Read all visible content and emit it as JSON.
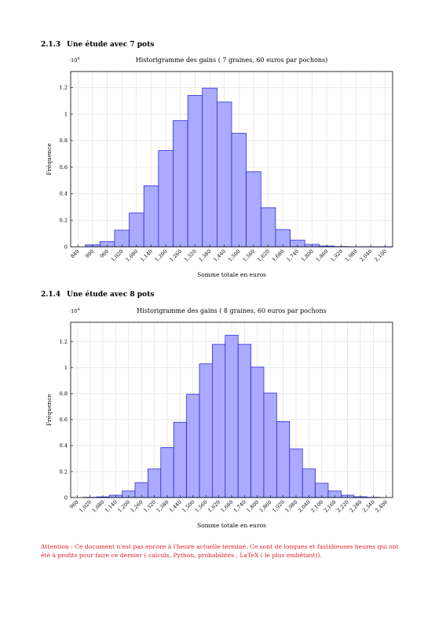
{
  "sections": [
    {
      "number": "2.1.3",
      "title": "Une étude avec 7 pots"
    },
    {
      "number": "2.1.4",
      "title": "Une étude avec 8 pots"
    }
  ],
  "chart_data": [
    {
      "type": "bar",
      "title": "Historigramme des gains ( 7 graines, 60 euros par pochons)",
      "xlabel": "Somme totale en euros",
      "ylabel": "Fréquence",
      "yscale_label": "·10^4",
      "ylim": [
        0,
        1.32
      ],
      "y_ticks": [
        "0",
        "0.2",
        "0.4",
        "0.6",
        "0.8",
        "1",
        "1.2"
      ],
      "x_tick_labels": [
        "840",
        "900",
        "960",
        "1,020",
        "1,080",
        "1,140",
        "1,200",
        "1,260",
        "1,320",
        "1,380",
        "1,440",
        "1,500",
        "1,560",
        "1,620",
        "1,680",
        "1,740",
        "1,800",
        "1,860",
        "1,920",
        "1,980",
        "2,040",
        "2,100"
      ],
      "bar_width": 60,
      "x": [
        900,
        960,
        1020,
        1080,
        1140,
        1200,
        1260,
        1320,
        1380,
        1440,
        1500,
        1560,
        1620,
        1680,
        1740,
        1800,
        1860,
        1920,
        1980,
        2040,
        2100
      ],
      "values": [
        0.015,
        0.04,
        0.125,
        0.255,
        0.46,
        0.725,
        0.95,
        1.14,
        1.195,
        1.09,
        0.855,
        0.565,
        0.295,
        0.13,
        0.05,
        0.018,
        0.006,
        0.002,
        0.001,
        0.0005,
        0.0002
      ],
      "grid": true,
      "colors": {
        "fill": "#aaaaff",
        "stroke": "#1a1ad0",
        "grid": "#dcdcdc"
      }
    },
    {
      "type": "bar",
      "title": "Historigramme des gains ( 8 graines, 60 euros par pochons",
      "xlabel": "Somme totale en euros",
      "ylabel": "Fréquence",
      "yscale_label": "·10^4",
      "ylim": [
        0,
        1.35
      ],
      "y_ticks": [
        "0",
        "0.2",
        "0.4",
        "0.6",
        "0.8",
        "1",
        "1.2"
      ],
      "x_tick_labels": [
        "960",
        "1,020",
        "1,080",
        "1,140",
        "1,200",
        "1,260",
        "1,320",
        "1,380",
        "1,440",
        "1,500",
        "1,560",
        "1,620",
        "1,680",
        "1,740",
        "1,800",
        "1,860",
        "1,920",
        "1,980",
        "2,040",
        "2,100",
        "2,160",
        "2,220",
        "2,280",
        "2,340",
        "2,400"
      ],
      "bar_width": 60,
      "x": [
        1020,
        1080,
        1140,
        1200,
        1260,
        1320,
        1380,
        1440,
        1500,
        1560,
        1620,
        1680,
        1740,
        1800,
        1860,
        1920,
        1980,
        2040,
        2100,
        2160,
        2220,
        2280,
        2340
      ],
      "values": [
        0.002,
        0.005,
        0.018,
        0.05,
        0.115,
        0.22,
        0.385,
        0.58,
        0.795,
        1.03,
        1.18,
        1.25,
        1.18,
        1.005,
        0.805,
        0.585,
        0.375,
        0.22,
        0.11,
        0.05,
        0.018,
        0.006,
        0.002
      ],
      "grid": true,
      "colors": {
        "fill": "#aaaaff",
        "stroke": "#1a1ad0",
        "grid": "#dcdcdc"
      }
    }
  ],
  "note": "Attention : Ce document n'est pas encore à l'heure actuelle terminé. Ce sont de longues et fastidieuses heures qui ont été à profits pour faire ce dernier ( calculs, Python, probabilités , LaTeX ( le plus embêtant))."
}
